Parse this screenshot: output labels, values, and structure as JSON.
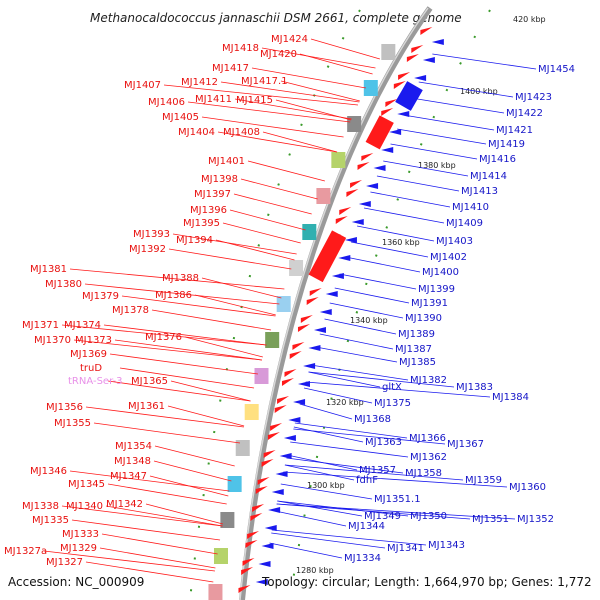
{
  "title": "Methanocaldococcus jannaschii DSM 2661, complete genome",
  "accession": "Accession: NC_000909",
  "summary": "Topology: circular; Length: 1,664,970 bp; Genes: 1,772",
  "ticks": [
    "420 kbp",
    "1400 kbp",
    "1380 kbp",
    "1360 kbp",
    "1340 kbp",
    "1320 kbp",
    "1300 kbp",
    "1280 kbp"
  ],
  "left_labels": [
    "MJ1424",
    "MJ1420",
    "MJ1418",
    "MJ1417",
    "MJ1417.1",
    "MJ1412",
    "MJ1415",
    "MJ1407",
    "MJ1411",
    "MJ1406",
    "MJ1405",
    "MJ1404",
    "MJ1408",
    "MJ1401",
    "MJ1398",
    "MJ1397",
    "MJ1396",
    "MJ1395",
    "MJ1393",
    "MJ1394",
    "MJ1392",
    "MJ1388",
    "MJ1381",
    "MJ1380",
    "MJ1386",
    "MJ1379",
    "MJ1378",
    "MJ1371",
    "MJ1374",
    "MJ1370",
    "MJ1373",
    "MJ1376",
    "MJ1369",
    "truD",
    "tRNA-Ser-3",
    "MJ1365",
    "MJ1361",
    "MJ1356",
    "MJ1355",
    "MJ1354",
    "MJ1348",
    "MJ1347",
    "MJ1346",
    "MJ1345",
    "MJ1342",
    "MJ1338",
    "MJ1340",
    "MJ1335",
    "MJ1333",
    "MJ1329",
    "MJ1327a",
    "MJ1327"
  ],
  "right_labels": [
    "MJ1454",
    "MJ1423",
    "MJ1422",
    "MJ1421",
    "MJ1419",
    "MJ1416",
    "MJ1414",
    "MJ1413",
    "MJ1410",
    "MJ1409",
    "MJ1403",
    "MJ1402",
    "MJ1400",
    "MJ1399",
    "MJ1391",
    "MJ1390",
    "MJ1389",
    "MJ1387",
    "MJ1385",
    "MJ1382",
    "MJ1383",
    "MJ1384",
    "gltX",
    "MJ1375",
    "MJ1368",
    "MJ1366",
    "MJ1367",
    "MJ1363",
    "MJ1362",
    "MJ1357",
    "MJ1358",
    "MJ1359",
    "fdhF",
    "MJ1360",
    "MJ1351.1",
    "MJ1349",
    "MJ1350",
    "MJ1351",
    "MJ1352",
    "MJ1344",
    "MJ1343",
    "MJ1341",
    "MJ1334"
  ],
  "colors": {
    "forward": "#ff1a1a",
    "reverse": "#1a1aee",
    "backbone": "#909090",
    "ticks": "#3a9a2a"
  }
}
